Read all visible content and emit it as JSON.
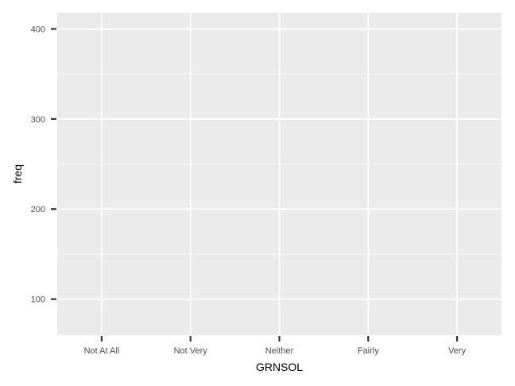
{
  "chart_data": {
    "type": "line",
    "title": "",
    "xlabel": "GRNSOL",
    "ylabel": "freq",
    "categories": [
      "Not At All",
      "Not Very",
      "Neither",
      "Fairly",
      "Very"
    ],
    "series": [],
    "ylim": [
      60,
      418
    ],
    "yticks": [
      100,
      200,
      300,
      400
    ],
    "grid": true,
    "legend": "none",
    "colors": {
      "panel": "#ebebeb",
      "grid": "#ffffff",
      "tick": "#333333",
      "tick_label": "#4d4d4d",
      "axis_title": "#000000"
    }
  }
}
